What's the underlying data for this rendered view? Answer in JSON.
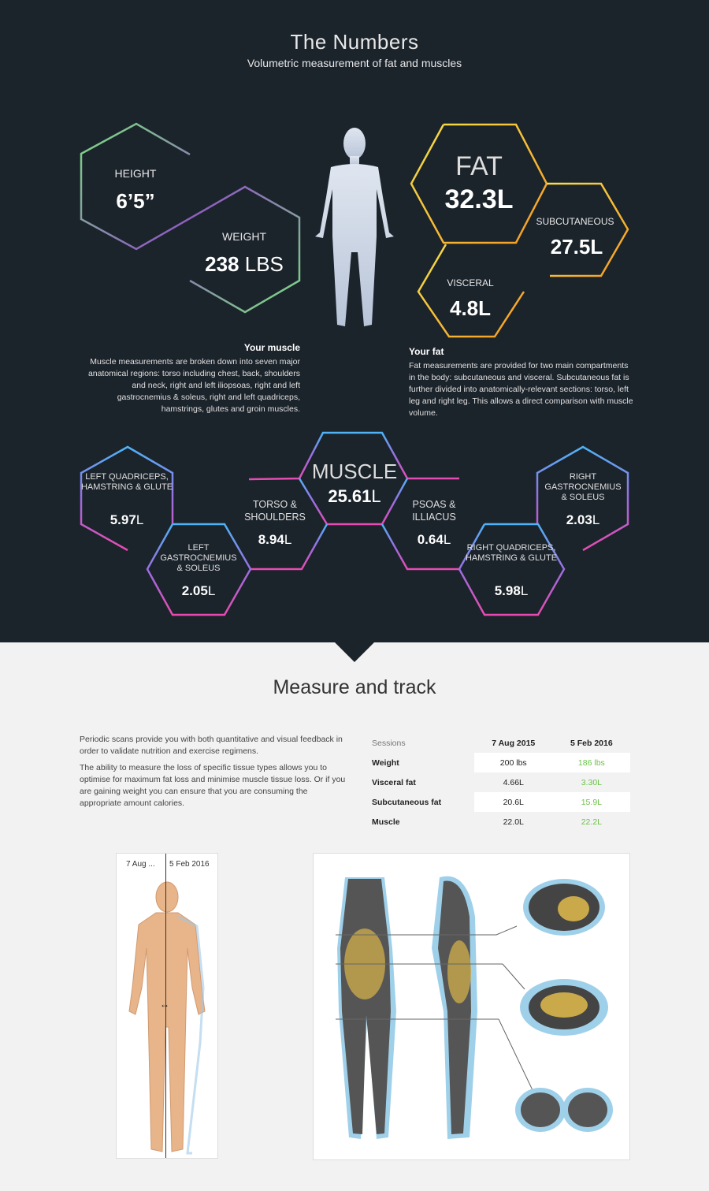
{
  "header": {
    "title": "The Numbers",
    "subtitle": "Volumetric measurement of fat and muscles"
  },
  "stats": {
    "height": {
      "label": "HEIGHT",
      "value": "6’5”"
    },
    "weight": {
      "label": "WEIGHT",
      "value": "238",
      "unit": " LBS"
    },
    "fat": {
      "label": "FAT",
      "value": "32.3L"
    },
    "subcutaneous": {
      "label": "SUBCUTANEOUS",
      "value": "27.5L"
    },
    "visceral": {
      "label": "VISCERAL",
      "value": "4.8L"
    }
  },
  "muscle_text": {
    "heading": "Your muscle",
    "body": "Muscle measurements are broken down into seven major anatomical regions: torso including chest, back, shoulders and neck, right and left iliopsoas, right and left gastrocnemius & soleus, right and left quadriceps, hamstrings, glutes and groin muscles."
  },
  "fat_text": {
    "heading": "Your fat",
    "body": "Fat measurements are provided for two main compartments in the body: subcutaneous and visceral. Subcutaneous fat is further divided into anatomically-relevant sections: torso, left leg and right leg. This allows a direct comparison with muscle volume."
  },
  "muscles": {
    "total": {
      "label": "MUSCLE",
      "value": "25.61",
      "unit": "L"
    },
    "left_quad": {
      "label": "LEFT QUADRICEPS, HAMSTRING & GLUTE",
      "value": "5.97",
      "unit": "L"
    },
    "left_gastro": {
      "label": "LEFT GASTROCNEMIUS & SOLEUS",
      "value": "2.05",
      "unit": "L"
    },
    "torso": {
      "label": "TORSO & SHOULDERS",
      "value": "8.94",
      "unit": "L"
    },
    "psoas": {
      "label": "PSOAS & ILLIACUS",
      "value": "0.64",
      "unit": "L"
    },
    "right_quad": {
      "label": "RIGHT QUADRICEPS, HAMSTRING & GLUTE",
      "value": "5.98",
      "unit": "L"
    },
    "right_gastro": {
      "label": "RIGHT GASTROCNEMIUS & SOLEUS",
      "value": "2.03",
      "unit": "L"
    }
  },
  "track": {
    "title": "Measure and track",
    "p1": "Periodic scans provide you with both quantitative and visual feedback in order to validate nutrition and exercise regimens.",
    "p2": "The ability to measure the loss of specific tissue types allows you to optimise for maximum fat loss and minimise muscle tissue loss. Or if you are gaining weight you can ensure that you are consuming the appropriate amount calories.",
    "table": {
      "headers": [
        "Sessions",
        "7 Aug 2015",
        "5 Feb 2016"
      ],
      "rows": [
        [
          "Weight",
          "200 lbs",
          "186 lbs"
        ],
        [
          "Visceral fat",
          "4.66L",
          "3.30L"
        ],
        [
          "Subcutaneous fat",
          "20.6L",
          "15.9L"
        ],
        [
          "Muscle",
          "22.0L",
          "22.2L"
        ]
      ]
    },
    "compare": {
      "left_label": "7 Aug ...",
      "right_label": "5 Feb 2016"
    }
  },
  "colors": {
    "dark_bg": "#1b232b",
    "improved": "#6cc24a",
    "green": "#7be07f",
    "purple": "#8e5fbf",
    "yellow": "#f5d743",
    "orange": "#f5a623",
    "blue": "#4fb3f6",
    "pink": "#e84bb0"
  }
}
